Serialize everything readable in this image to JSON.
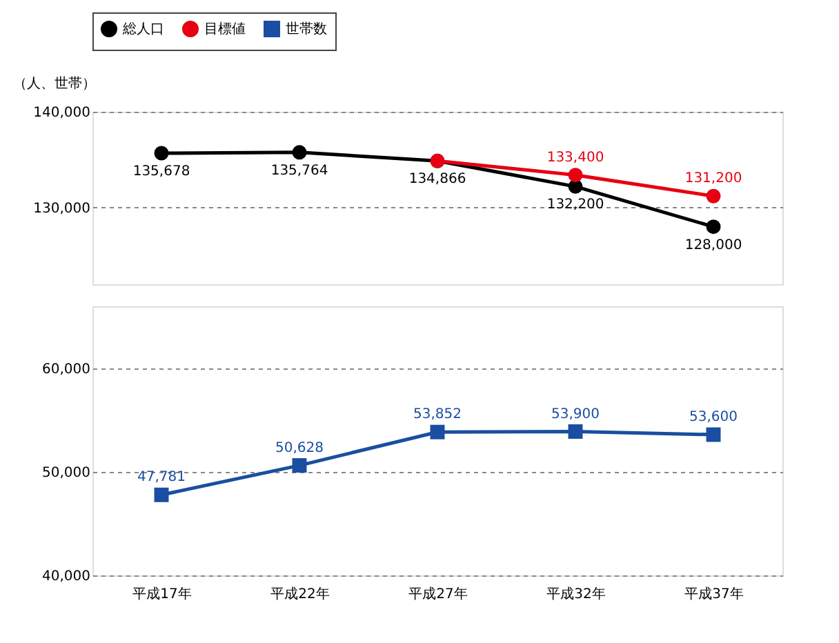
{
  "chart_data": [
    {
      "type": "line",
      "ylabel": "（人、世帯）",
      "categories": [
        null,
        null,
        null,
        null,
        null
      ],
      "ylim": [
        122000,
        140000
      ],
      "yticks": [
        {
          "value": 130000,
          "label": "130,000"
        },
        {
          "value": 140000,
          "label": "140,000"
        }
      ],
      "grid": "y",
      "legend": "top",
      "tick_labels": "y",
      "series": [
        {
          "name": "総人口",
          "color": "#000000",
          "marker": "circle",
          "values": [
            135678,
            135764,
            134866,
            132200,
            128000
          ],
          "value_labels": [
            "135,678",
            "135,764",
            "134,866",
            "132,200",
            "128,000"
          ]
        },
        {
          "name": "目標値",
          "color": "#e60012",
          "marker": "circle",
          "values": [
            null,
            null,
            134866,
            133400,
            131200
          ],
          "value_labels": [
            null,
            null,
            null,
            "133,400",
            "131,200"
          ]
        }
      ]
    },
    {
      "type": "line",
      "categories": [
        "平成17年",
        "平成22年",
        "平成27年",
        "平成32年",
        "平成37年"
      ],
      "ylim": [
        40000,
        66000
      ],
      "yticks": [
        {
          "value": 40000,
          "label": "40,000"
        },
        {
          "value": 50000,
          "label": "50,000"
        },
        {
          "value": 60000,
          "label": "60,000"
        }
      ],
      "grid": "y",
      "series": [
        {
          "name": "世帯数",
          "color": "#1a4ea0",
          "marker": "square",
          "values": [
            47781,
            50628,
            53852,
            53900,
            53600
          ],
          "value_labels": [
            "47,781",
            "50,628",
            "53,852",
            "53,900",
            "53,600"
          ]
        }
      ]
    }
  ]
}
